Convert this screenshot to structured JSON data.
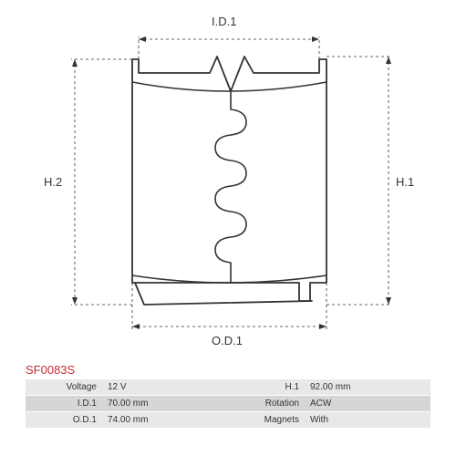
{
  "diagram": {
    "labels": {
      "id1": "I.D.1",
      "od1": "O.D.1",
      "h1": "H.1",
      "h2": "H.2"
    },
    "colors": {
      "stroke": "#333333",
      "dim_line": "#333333",
      "background": "#ffffff"
    },
    "stroke_width": 1.8,
    "dim_stroke_width": 0.8,
    "dash": "3 3"
  },
  "part_code": "SF0083S",
  "part_code_color": "#c62d36",
  "spec_rows": [
    {
      "l1": "Voltage",
      "v1": "12 V",
      "l2": "H.1",
      "v2": "92.00 mm",
      "cls": "odd"
    },
    {
      "l1": "I.D.1",
      "v1": "70.00 mm",
      "l2": "Rotation",
      "v2": "ACW",
      "cls": "even"
    },
    {
      "l1": "O.D.1",
      "v1": "74.00 mm",
      "l2": "Magnets",
      "v2": "With",
      "cls": "odd"
    }
  ],
  "table_colors": {
    "odd": "#e8e8e8",
    "even": "#d6d6d6",
    "text": "#333333"
  }
}
